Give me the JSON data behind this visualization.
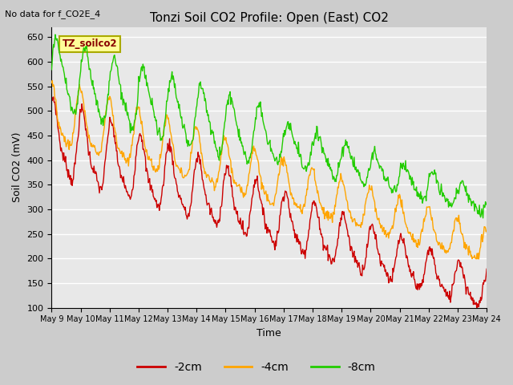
{
  "title": "Tonzi Soil CO2 Profile: Open (East) CO2",
  "subtitle": "No data for f_CO2E_4",
  "ylabel": "Soil CO2 (mV)",
  "xlabel": "Time",
  "legend_label": "TZ_soilco2",
  "ylim": [
    100,
    670
  ],
  "yticks": [
    100,
    150,
    200,
    250,
    300,
    350,
    400,
    450,
    500,
    550,
    600,
    650
  ],
  "color_2cm": "#cc0000",
  "color_4cm": "#ffa500",
  "color_8cm": "#22cc00",
  "label_2cm": "-2cm",
  "label_4cm": "-4cm",
  "label_8cm": "-8cm",
  "xtick_labels": [
    "May 9",
    "May 10",
    "May 11",
    "May 12",
    "May 13",
    "May 14",
    "May 15",
    "May 16",
    "May 17",
    "May 18",
    "May 19",
    "May 20",
    "May 21",
    "May 22",
    "May 23",
    "May 24"
  ],
  "bg_color": "#e8e8e8",
  "grid_color": "#ffffff",
  "legend_box_facecolor": "#ffff99",
  "legend_box_edgecolor": "#aaaa00",
  "legend_label_color": "#880000",
  "fig_bg_color": "#cccccc"
}
